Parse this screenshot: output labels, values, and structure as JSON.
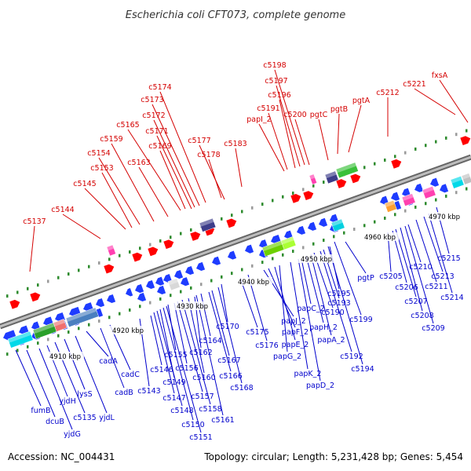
{
  "title": "Escherichia coli CFT073, complete genome",
  "footer": {
    "accession": "Accession: NC_004431",
    "summary": "Topology: circular; Length: 5,231,428 bp; Genes: 5,454"
  },
  "colors": {
    "forward_label": "#d40000",
    "reverse_label": "#0000cc",
    "backbone": "#808080",
    "forward_gene": "#ff0000",
    "reverse_gene": "#1e3cff",
    "tick": "#2e8b2e"
  },
  "scale_labels": [
    "4910 kbp",
    "4920 kbp",
    "4930 kbp",
    "4940 kbp",
    "4950 kbp",
    "4960 kbp",
    "4970 kbp"
  ],
  "forward_labels": [
    "c5137",
    "c5144",
    "c5145",
    "c5153",
    "c5154",
    "c5159",
    "c5163",
    "c5165",
    "c5169",
    "c5171",
    "c5172",
    "c5173",
    "c5174",
    "c5177",
    "c5178",
    "c5183",
    "papI_2",
    "c5191",
    "c5196",
    "c5197",
    "c5198",
    "c5200",
    "pgtC",
    "pgtB",
    "pgtA",
    "c5212",
    "c5221",
    "fxsA"
  ],
  "reverse_labels": [
    "fumB",
    "dcuB",
    "yjdG",
    "yjdH",
    "c5135",
    "lysS",
    "yjdL",
    "cadA",
    "cadB",
    "cadC",
    "c5143",
    "c5146",
    "c5147",
    "c5148",
    "c5149",
    "c5150",
    "c5151",
    "c5155",
    "c5156",
    "c5157",
    "c5158",
    "c5160",
    "c5161",
    "c5162",
    "c5164",
    "c5166",
    "c5167",
    "c5168",
    "c5170",
    "c5175",
    "c5176",
    "papJ_2",
    "papF_2",
    "papE_2",
    "papG_2",
    "papK_2",
    "papD_2",
    "papC_2",
    "papH_2",
    "papA_2",
    "c5190",
    "c5192",
    "c5193",
    "c5194",
    "c5195",
    "c5199",
    "pgtP",
    "c5205",
    "c5206",
    "c5207",
    "c5208",
    "c5209",
    "c5210",
    "c5211",
    "c5213",
    "c5214",
    "c5215"
  ]
}
